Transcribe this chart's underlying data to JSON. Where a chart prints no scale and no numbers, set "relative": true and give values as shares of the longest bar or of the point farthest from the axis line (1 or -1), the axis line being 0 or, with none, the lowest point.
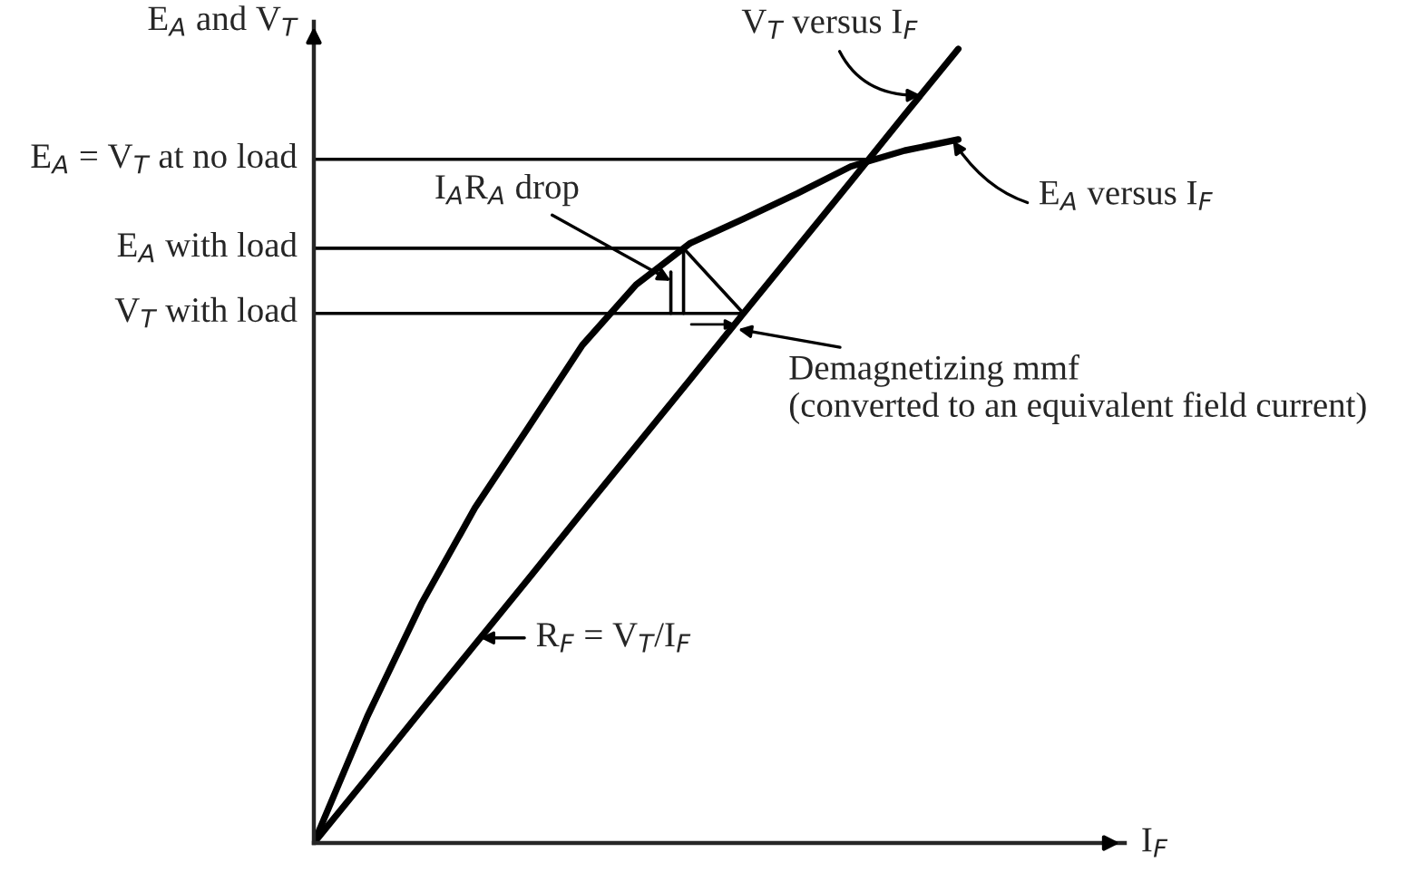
{
  "chart_data": {
    "type": "line",
    "relative": true,
    "xlabel": "I$_{F}$",
    "ylabel": "E$_{A}$ and V$_{T}$",
    "line_style": "solid",
    "categories": [
      null,
      null,
      null,
      null,
      null,
      null,
      null,
      null,
      null,
      null,
      null,
      null,
      null
    ],
    "series": [
      {
        "color": "#000000",
        "values": [
          0,
          0.16,
          0.301,
          0.422,
          0.524,
          0.627,
          0.703,
          0.755,
          0.786,
          0.818,
          0.852,
          0.872,
          0.886
        ]
      },
      {
        "color": "#000000",
        "values": [
          0,
          0.083,
          0.167,
          0.25,
          0.333,
          0.417,
          0.5,
          0.583,
          0.667,
          0.75,
          0.833,
          0.917,
          1.0
        ]
      }
    ],
    "ref_lines": [
      {
        "axis": "y",
        "value": 0.861,
        "label": "E$_{A}$ = V$_{T}$ at no load"
      },
      {
        "axis": "y",
        "value": 0.749,
        "label": "E$_{A}$ with load"
      },
      {
        "axis": "y",
        "value": 0.667,
        "label": "V$_{T}$ with load"
      }
    ],
    "annotations": [
      "I$_{A}$R$_{A}$ drop",
      "Demagnetizing mmf\n(converted to an equivalent field current)",
      "V$_{T}$ versus I$_{F}$",
      "E$_{A}$ versus I$_{F}$",
      "R$_{F}$ = V$_{T}$/I$_{F}$"
    ]
  }
}
